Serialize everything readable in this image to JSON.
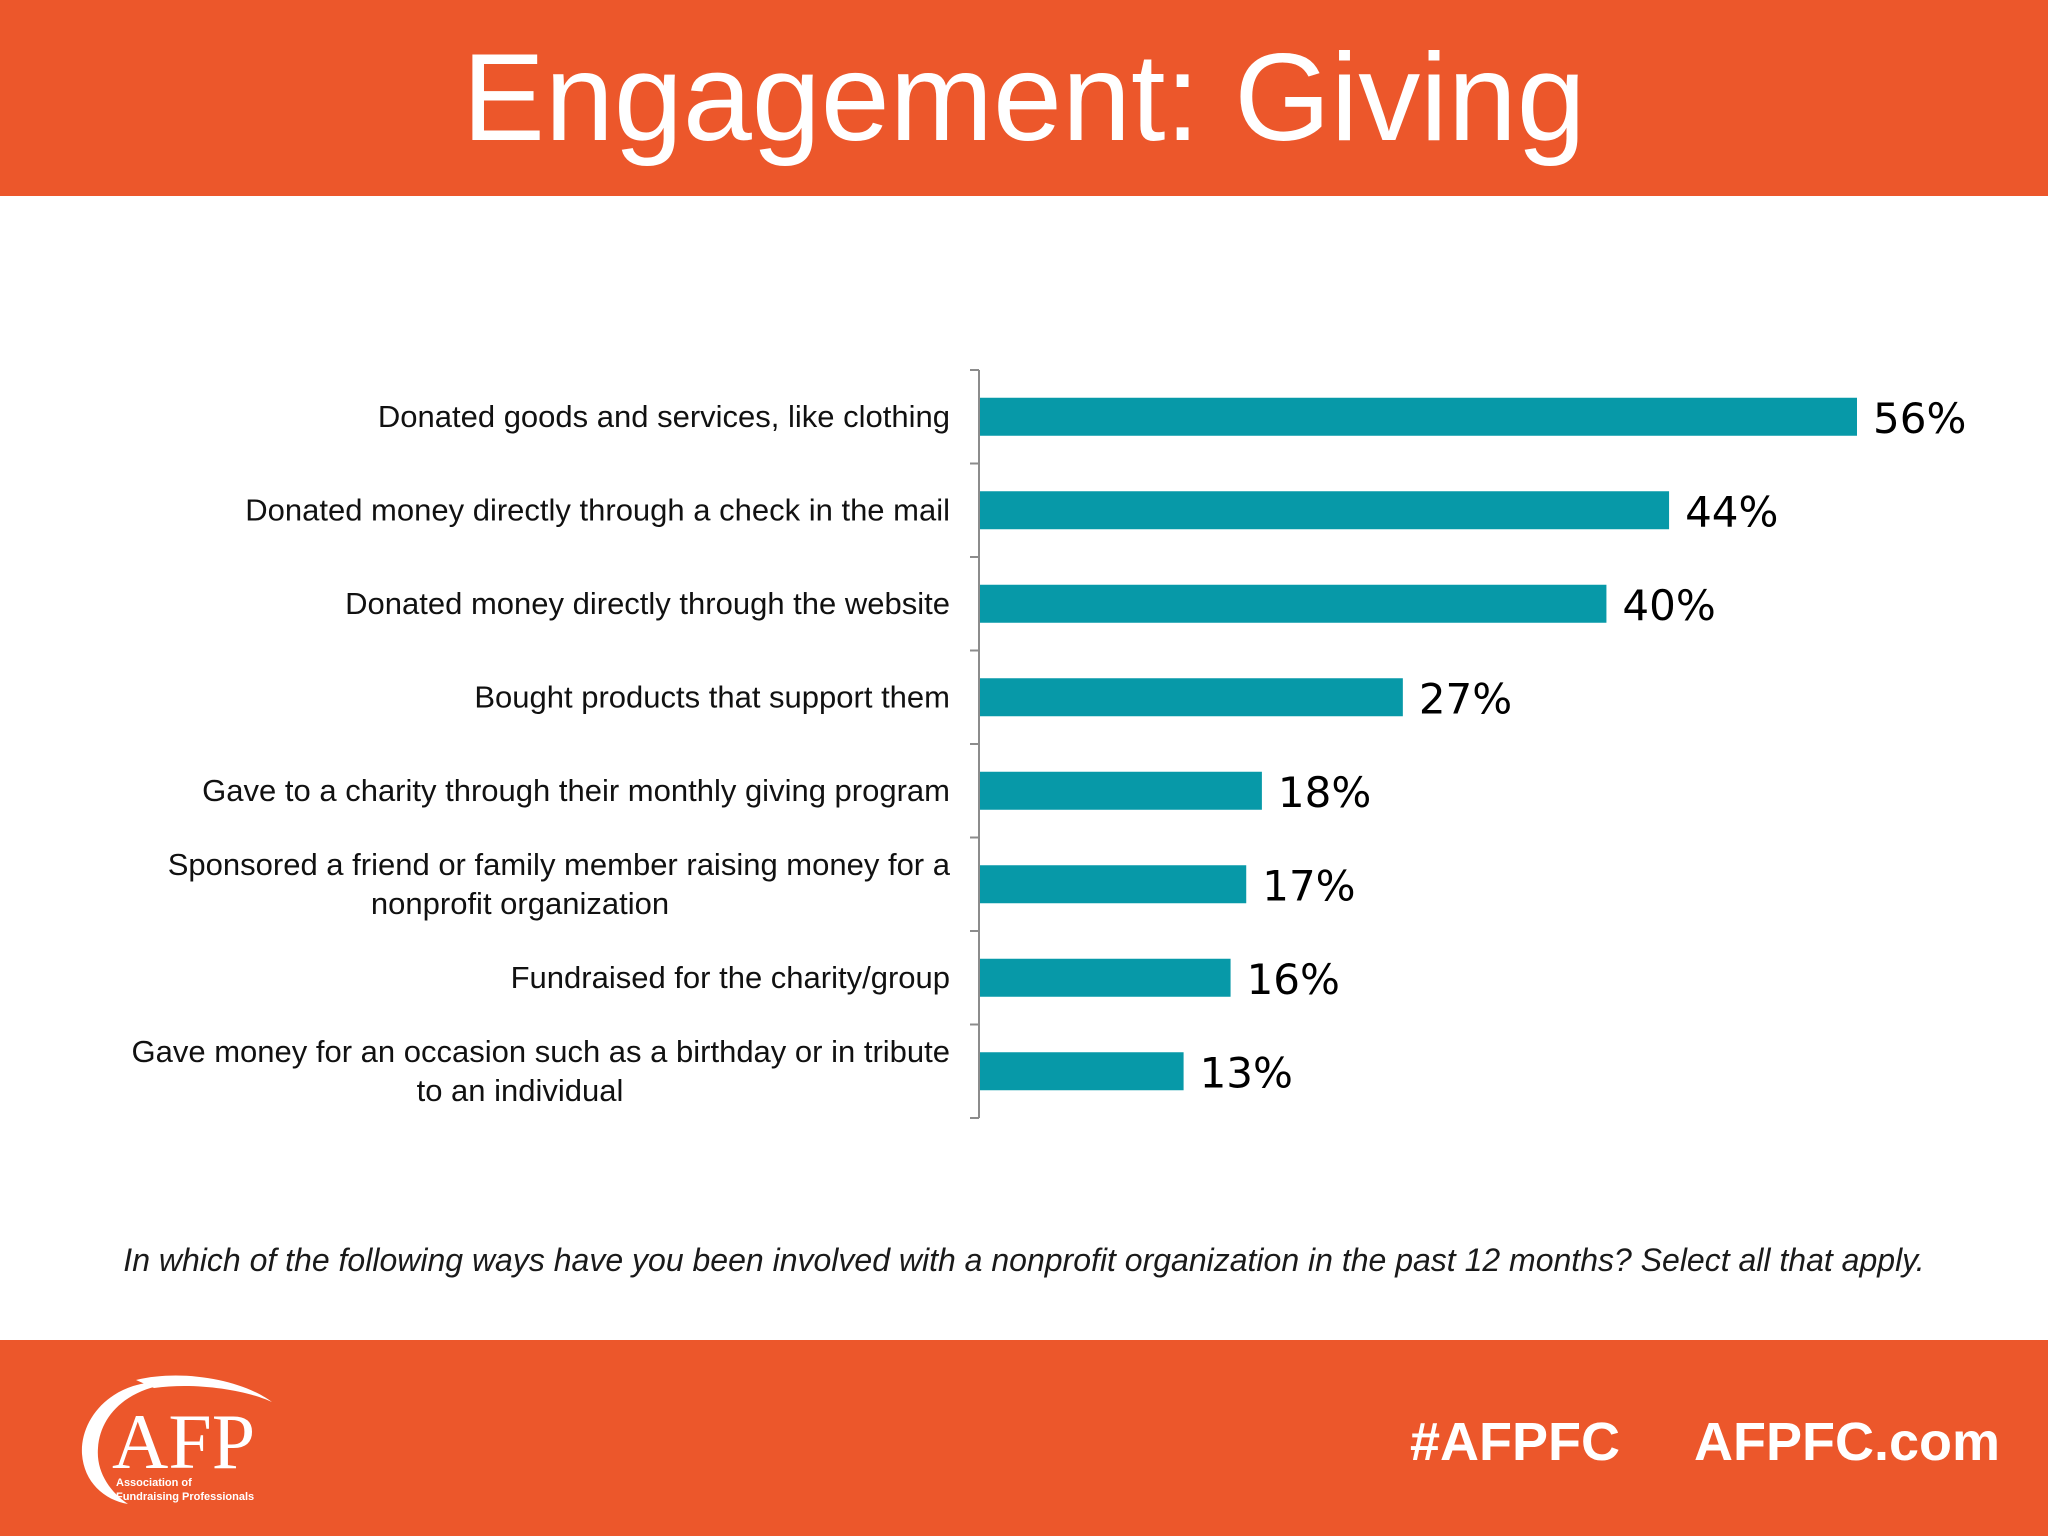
{
  "slide": {
    "title": "Engagement: Giving",
    "question": "In which of the following ways have you been involved with a nonprofit organization in the past 12 months? Select all that apply."
  },
  "footer": {
    "logo_text": "AFP",
    "logo_subtext": [
      "Association of",
      "Fundraising Professionals"
    ],
    "hashtag": "#AFPFC",
    "website": "AFPFC.com"
  },
  "colors": {
    "brand_orange": "#EC572B",
    "bar_teal": "#0799A8"
  },
  "chart_data": {
    "type": "bar",
    "orientation": "horizontal",
    "categories": [
      [
        "Donated goods and services, like clothing"
      ],
      [
        "Donated money directly through a check in the mail"
      ],
      [
        "Donated money directly through the website"
      ],
      [
        "Bought products that support them"
      ],
      [
        "Gave to a charity through their monthly giving program"
      ],
      [
        "Sponsored a friend or family member raising money for a",
        "nonprofit organization"
      ],
      [
        "Fundraised for the charity/group"
      ],
      [
        "Gave money for an occasion such as a birthday or in tribute",
        "to an individual"
      ]
    ],
    "values": [
      56,
      44,
      40,
      27,
      18,
      17,
      16,
      13
    ],
    "data_labels": [
      "56%",
      "44%",
      "40%",
      "27%",
      "18%",
      "17%",
      "16%",
      "13%"
    ],
    "xlim": [
      0,
      60
    ],
    "grid": false,
    "legend": "none"
  }
}
